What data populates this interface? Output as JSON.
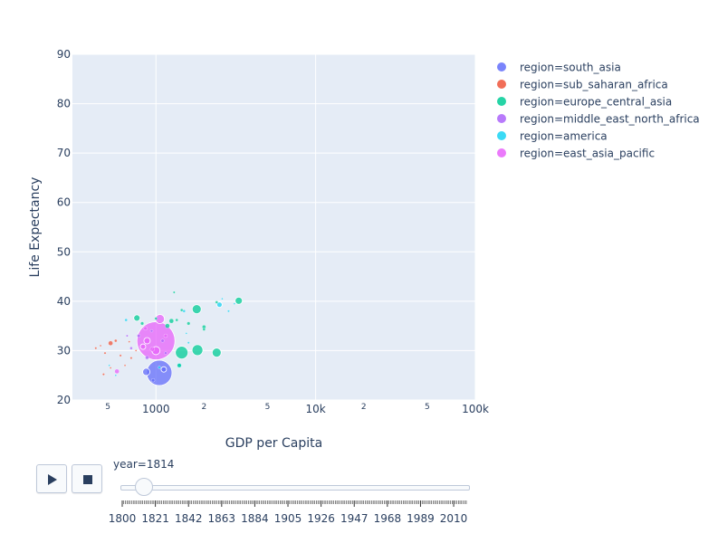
{
  "chart_data": {
    "type": "scatter",
    "title": "",
    "xlabel": "GDP per Capita",
    "ylabel": "Life Expectancy",
    "x_scale": "log",
    "xlim": [
      300,
      100000
    ],
    "ylim": [
      20,
      90
    ],
    "grid": true,
    "legend_position": "right",
    "x_ticks_major": [
      {
        "value": 1000,
        "label": "1000"
      },
      {
        "value": 10000,
        "label": "10k"
      },
      {
        "value": 100000,
        "label": "100k"
      }
    ],
    "x_ticks_minor": [
      {
        "value": 500,
        "label": "5"
      },
      {
        "value": 2000,
        "label": "2"
      },
      {
        "value": 5000,
        "label": "5"
      },
      {
        "value": 20000,
        "label": "2"
      },
      {
        "value": 50000,
        "label": "5"
      }
    ],
    "y_ticks": [
      20,
      30,
      40,
      50,
      60,
      70,
      80,
      90
    ],
    "colors": {
      "south_asia": "#636efa",
      "sub_saharan_africa": "#ef553b",
      "europe_central_asia": "#00cc96",
      "middle_east_north_africa": "#ab63fa",
      "america": "#19d3f3",
      "east_asia_pacific": "#e763fa"
    },
    "series": [
      {
        "name": "region=south_asia",
        "color": "#636efa",
        "points": [
          {
            "x": 1050,
            "y": 25.5,
            "size": 14
          },
          {
            "x": 870,
            "y": 25.7,
            "size": 4
          },
          {
            "x": 1120,
            "y": 26.2,
            "size": 3
          },
          {
            "x": 960,
            "y": 24.0,
            "size": 2
          }
        ]
      },
      {
        "name": "region=sub_saharan_africa",
        "color": "#ef553b",
        "points": [
          {
            "x": 520,
            "y": 31.5,
            "size": 2.5
          },
          {
            "x": 420,
            "y": 30.5,
            "size": 1.2
          },
          {
            "x": 480,
            "y": 29.5,
            "size": 1.2
          },
          {
            "x": 560,
            "y": 32.0,
            "size": 1.5
          },
          {
            "x": 600,
            "y": 29.0,
            "size": 1.2
          },
          {
            "x": 700,
            "y": 28.5,
            "size": 1.2
          },
          {
            "x": 640,
            "y": 27.0,
            "size": 1.0
          },
          {
            "x": 470,
            "y": 25.2,
            "size": 1.2
          },
          {
            "x": 520,
            "y": 26.5,
            "size": 1.0
          },
          {
            "x": 450,
            "y": 31.0,
            "size": 1.0
          },
          {
            "x": 750,
            "y": 30.0,
            "size": 1.0
          },
          {
            "x": 680,
            "y": 31.8,
            "size": 1.0
          }
        ]
      },
      {
        "name": "region=europe_central_asia",
        "color": "#00cc96",
        "points": [
          {
            "x": 1450,
            "y": 29.6,
            "size": 7
          },
          {
            "x": 1820,
            "y": 30.1,
            "size": 6
          },
          {
            "x": 2400,
            "y": 29.6,
            "size": 5
          },
          {
            "x": 1800,
            "y": 38.4,
            "size": 5
          },
          {
            "x": 3300,
            "y": 40.1,
            "size": 4
          },
          {
            "x": 760,
            "y": 36.6,
            "size": 3.5
          },
          {
            "x": 1250,
            "y": 36.0,
            "size": 2.5
          },
          {
            "x": 1180,
            "y": 35.0,
            "size": 2.5
          },
          {
            "x": 1400,
            "y": 27.0,
            "size": 2.2
          },
          {
            "x": 2000,
            "y": 34.8,
            "size": 2
          },
          {
            "x": 1600,
            "y": 35.5,
            "size": 1.8
          },
          {
            "x": 820,
            "y": 35.5,
            "size": 1.8
          },
          {
            "x": 1450,
            "y": 38.2,
            "size": 1.5
          },
          {
            "x": 2000,
            "y": 34.3,
            "size": 1.5
          },
          {
            "x": 1350,
            "y": 36.2,
            "size": 1.5
          },
          {
            "x": 2400,
            "y": 39.8,
            "size": 1.5
          },
          {
            "x": 1300,
            "y": 41.8,
            "size": 1.2
          },
          {
            "x": 1000,
            "y": 36.5,
            "size": 1.5
          }
        ]
      },
      {
        "name": "region=middle_east_north_africa",
        "color": "#ab63fa",
        "points": [
          {
            "x": 880,
            "y": 28.6,
            "size": 2
          },
          {
            "x": 780,
            "y": 33.0,
            "size": 1.8
          },
          {
            "x": 1100,
            "y": 32.0,
            "size": 1.8
          },
          {
            "x": 940,
            "y": 34.0,
            "size": 1.5
          },
          {
            "x": 1150,
            "y": 29.5,
            "size": 1.5
          },
          {
            "x": 700,
            "y": 30.5,
            "size": 1.5
          },
          {
            "x": 660,
            "y": 33.0,
            "size": 1.2
          }
        ]
      },
      {
        "name": "region=america",
        "color": "#19d3f3",
        "points": [
          {
            "x": 2500,
            "y": 39.3,
            "size": 3
          },
          {
            "x": 1400,
            "y": 27.0,
            "size": 2.5
          },
          {
            "x": 1500,
            "y": 38.0,
            "size": 1.5
          },
          {
            "x": 650,
            "y": 36.2,
            "size": 1.5
          },
          {
            "x": 1050,
            "y": 26.6,
            "size": 1.5
          },
          {
            "x": 2850,
            "y": 38.0,
            "size": 1.2
          },
          {
            "x": 1600,
            "y": 31.6,
            "size": 1.2
          },
          {
            "x": 510,
            "y": 27.0,
            "size": 1.0
          },
          {
            "x": 1550,
            "y": 33.5,
            "size": 1.0
          },
          {
            "x": 3100,
            "y": 39.5,
            "size": 1.0
          },
          {
            "x": 560,
            "y": 25.0,
            "size": 1.0
          },
          {
            "x": 2600,
            "y": 40.5,
            "size": 1.0
          }
        ]
      },
      {
        "name": "region=east_asia_pacific",
        "color": "#e763fa",
        "points": [
          {
            "x": 1000,
            "y": 32.0,
            "size": 21
          },
          {
            "x": 1060,
            "y": 36.4,
            "size": 5
          },
          {
            "x": 1000,
            "y": 30.0,
            "size": 4.5
          },
          {
            "x": 880,
            "y": 32.0,
            "size": 3.5
          },
          {
            "x": 830,
            "y": 30.8,
            "size": 3
          },
          {
            "x": 570,
            "y": 25.8,
            "size": 2.5
          },
          {
            "x": 950,
            "y": 30.3,
            "size": 2.5
          },
          {
            "x": 1150,
            "y": 33.0,
            "size": 2
          },
          {
            "x": 860,
            "y": 34.5,
            "size": 2
          }
        ]
      }
    ]
  },
  "slider": {
    "prefix": "year=1814",
    "current_year": 1814,
    "range": [
      1800,
      2018
    ],
    "tick_labels": [
      "1800",
      "1821",
      "1842",
      "1863",
      "1884",
      "1905",
      "1926",
      "1947",
      "1968",
      "1989",
      "2010"
    ],
    "minor_tick_count": 219
  },
  "controls": {
    "play_icon": "play-icon",
    "stop_icon": "stop-icon"
  }
}
